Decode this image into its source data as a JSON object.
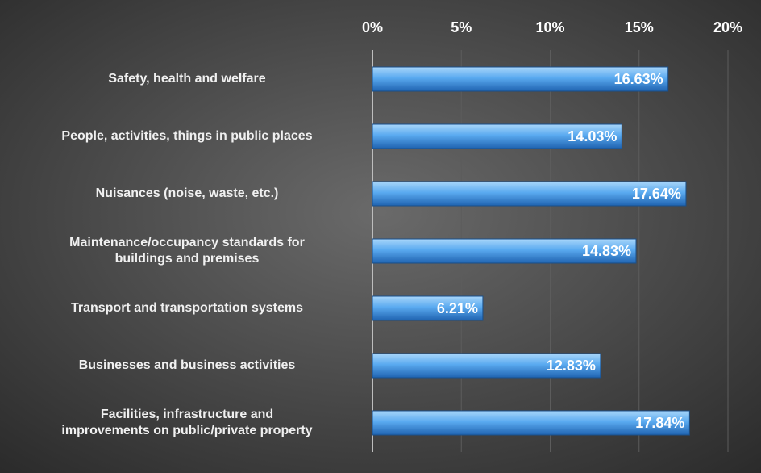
{
  "chart_data": {
    "type": "bar",
    "orientation": "horizontal",
    "categories": [
      "Safety, health and welfare",
      "People, activities, things in public places",
      "Nuisances (noise, waste, etc.)",
      "Maintenance/occupancy standards for\nbuildings and premises",
      "Transport and transportation systems",
      "Businesses and business activities",
      "Facilities, infrastructure and\nimprovements on public/private property"
    ],
    "values": [
      16.63,
      14.03,
      17.64,
      14.83,
      6.21,
      12.83,
      17.84
    ],
    "value_labels": [
      "16.63%",
      "14.03%",
      "17.64%",
      "14.83%",
      "6.21%",
      "12.83%",
      "17.84%"
    ],
    "color": "#3d8fdc",
    "xlim": [
      0,
      20
    ],
    "xticks": [
      {
        "value": 0,
        "label": "0%"
      },
      {
        "value": 5,
        "label": "5%"
      },
      {
        "value": 10,
        "label": "10%"
      },
      {
        "value": 15,
        "label": "15%"
      },
      {
        "value": 20,
        "label": "20%"
      }
    ],
    "grid": true
  }
}
